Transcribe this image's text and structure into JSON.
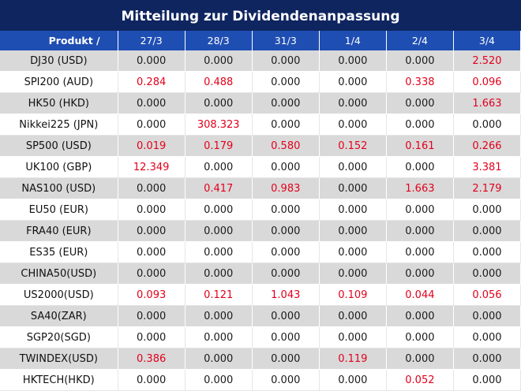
{
  "title": "Mitteilung zur Dividendenanpassung",
  "colors": {
    "header_bg": "#0f2560",
    "column_header_bg": "#1f4eb3",
    "stripe": "#d9d9d9",
    "highlight": "#e3001b"
  },
  "columns": [
    "Produkt /",
    "27/3",
    "28/3",
    "31/3",
    "1/4",
    "2/4",
    "3/4"
  ],
  "rows": [
    {
      "product": "DJ30 (USD)",
      "values": [
        "0.000",
        "0.000",
        "0.000",
        "0.000",
        "0.000",
        "2.520"
      ]
    },
    {
      "product": "SPI200 (AUD)",
      "values": [
        "0.284",
        "0.488",
        "0.000",
        "0.000",
        "0.338",
        "0.096"
      ]
    },
    {
      "product": "HK50 (HKD)",
      "values": [
        "0.000",
        "0.000",
        "0.000",
        "0.000",
        "0.000",
        "1.663"
      ]
    },
    {
      "product": "Nikkei225 (JPN)",
      "values": [
        "0.000",
        "308.323",
        "0.000",
        "0.000",
        "0.000",
        "0.000"
      ]
    },
    {
      "product": "SP500 (USD)",
      "values": [
        "0.019",
        "0.179",
        "0.580",
        "0.152",
        "0.161",
        "0.266"
      ]
    },
    {
      "product": "UK100 (GBP)",
      "values": [
        "12.349",
        "0.000",
        "0.000",
        "0.000",
        "0.000",
        "3.381"
      ]
    },
    {
      "product": "NAS100 (USD)",
      "values": [
        "0.000",
        "0.417",
        "0.983",
        "0.000",
        "1.663",
        "2.179"
      ]
    },
    {
      "product": "EU50 (EUR)",
      "values": [
        "0.000",
        "0.000",
        "0.000",
        "0.000",
        "0.000",
        "0.000"
      ]
    },
    {
      "product": "FRA40 (EUR)",
      "values": [
        "0.000",
        "0.000",
        "0.000",
        "0.000",
        "0.000",
        "0.000"
      ]
    },
    {
      "product": "ES35 (EUR)",
      "values": [
        "0.000",
        "0.000",
        "0.000",
        "0.000",
        "0.000",
        "0.000"
      ]
    },
    {
      "product": "CHINA50(USD)",
      "values": [
        "0.000",
        "0.000",
        "0.000",
        "0.000",
        "0.000",
        "0.000"
      ]
    },
    {
      "product": "US2000(USD)",
      "values": [
        "0.093",
        "0.121",
        "1.043",
        "0.109",
        "0.044",
        "0.056"
      ]
    },
    {
      "product": "SA40(ZAR)",
      "values": [
        "0.000",
        "0.000",
        "0.000",
        "0.000",
        "0.000",
        "0.000"
      ]
    },
    {
      "product": "SGP20(SGD)",
      "values": [
        "0.000",
        "0.000",
        "0.000",
        "0.000",
        "0.000",
        "0.000"
      ]
    },
    {
      "product": "TWINDEX(USD)",
      "values": [
        "0.386",
        "0.000",
        "0.000",
        "0.119",
        "0.000",
        "0.000"
      ]
    },
    {
      "product": "HKTECH(HKD)",
      "values": [
        "0.000",
        "0.000",
        "0.000",
        "0.000",
        "0.052",
        "0.000"
      ]
    }
  ]
}
